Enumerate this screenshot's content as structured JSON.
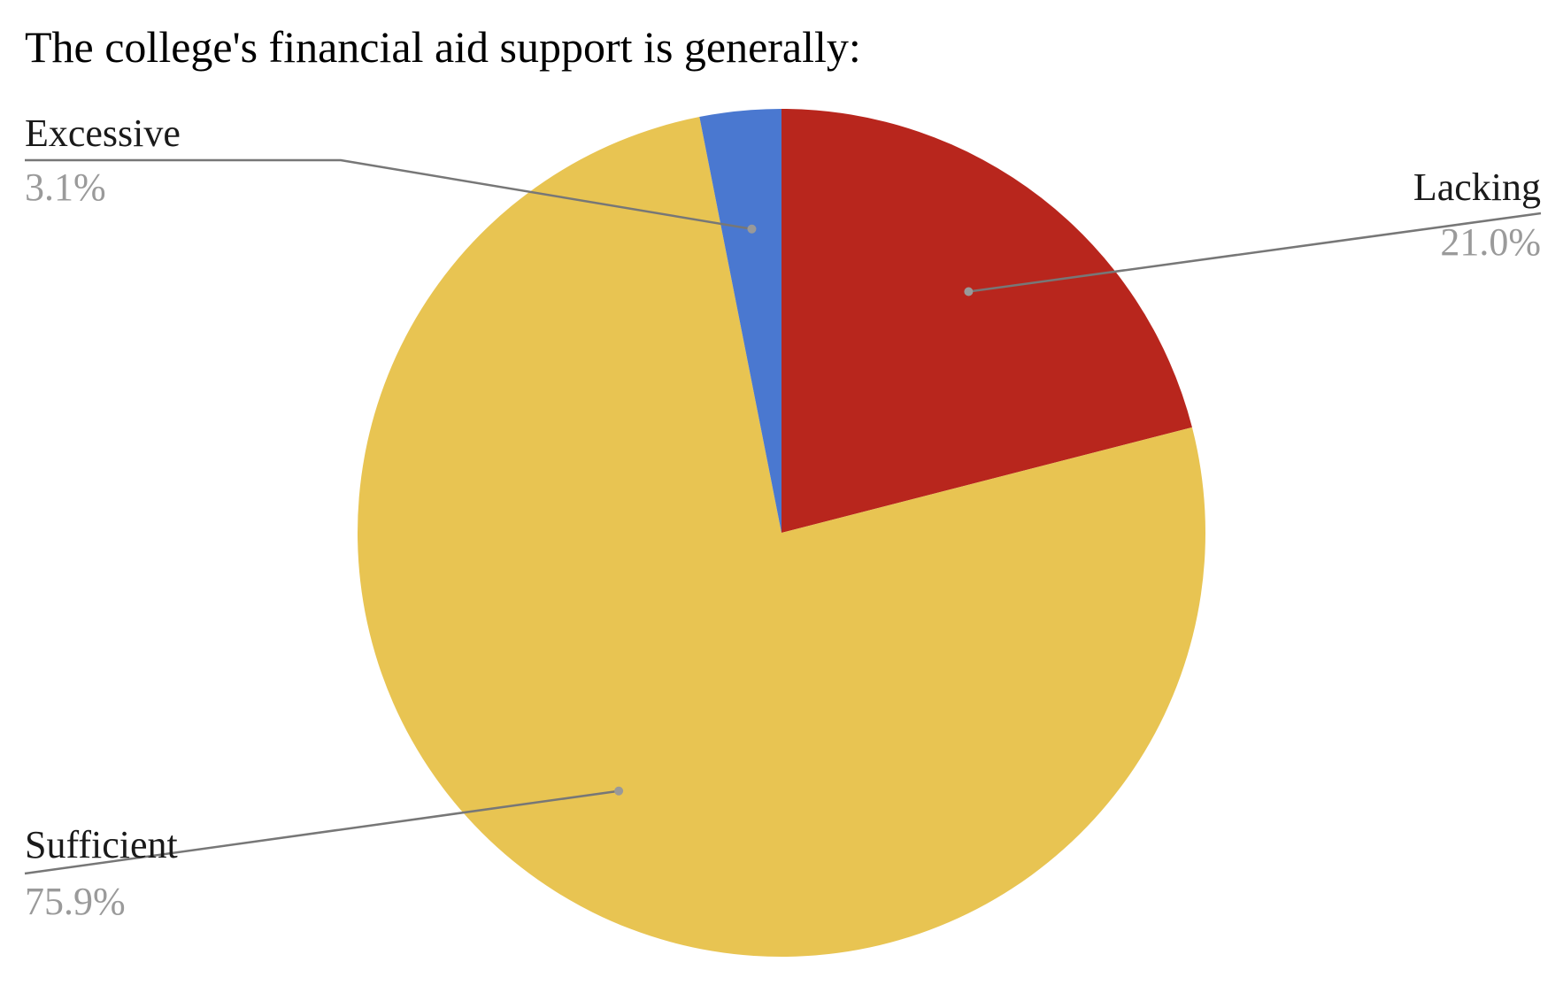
{
  "chart_data": {
    "type": "pie",
    "title": "The college's financial aid support is generally:",
    "categories": [
      "Lacking",
      "Sufficient",
      "Excessive"
    ],
    "values": [
      21.0,
      75.9,
      3.1
    ],
    "value_labels": [
      "21.0%",
      "75.9%",
      "3.1%"
    ],
    "colors": [
      "#b8261d",
      "#e8c452",
      "#4a78d0"
    ]
  }
}
